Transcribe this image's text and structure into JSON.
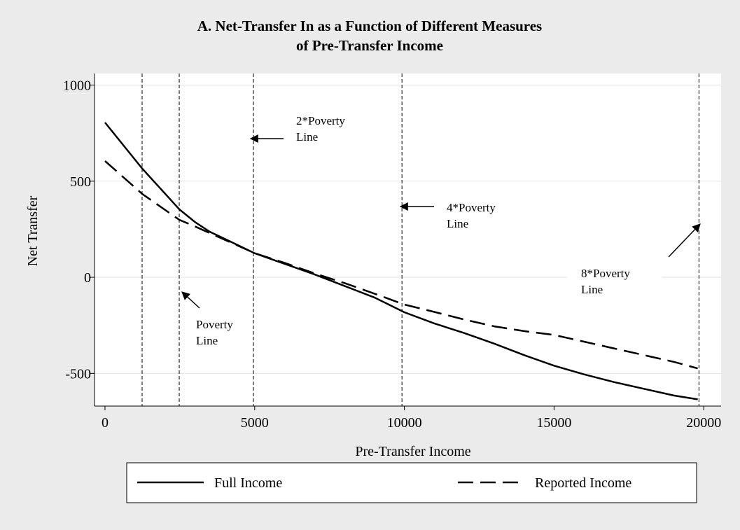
{
  "chart_data": {
    "type": "line",
    "title": [
      "A.   Net-Transfer In as a Function of Different Measures",
      "of Pre-Transfer Income"
    ],
    "x_label": "Pre-Transfer Income",
    "y_label": "Net Transfer",
    "x": [
      0,
      1240,
      2480,
      3000,
      3500,
      4000,
      5000,
      6000,
      7000,
      8000,
      9000,
      10000,
      11000,
      12000,
      13000,
      14000,
      15000,
      16000,
      17000,
      18000,
      19000,
      19800
    ],
    "series": [
      {
        "name": "Full Income",
        "color": "#000000",
        "dash": "solid",
        "values": [
          805,
          566,
          354,
          288,
          237,
          200,
          125,
          70,
          15,
          -45,
          -105,
          -182,
          -240,
          -290,
          -345,
          -405,
          -460,
          -505,
          -545,
          -580,
          -615,
          -635
        ]
      },
      {
        "name": "Reported Income",
        "color": "#000000",
        "dash": "dashed",
        "values": [
          605,
          434,
          299,
          265,
          230,
          195,
          125,
          75,
          20,
          -30,
          -85,
          -142,
          -180,
          -220,
          -255,
          -280,
          -300,
          -335,
          -370,
          -405,
          -440,
          -474
        ]
      }
    ],
    "vlines": [
      1240,
      2480,
      4960,
      9920,
      19840
    ],
    "annotations": [
      {
        "text": [
          "2*Poverty",
          "Line"
        ]
      },
      {
        "text": [
          "4*Poverty",
          "Line"
        ]
      },
      {
        "text": [
          "8*Poverty",
          "Line"
        ]
      },
      {
        "text": [
          "Poverty",
          "Line"
        ]
      }
    ],
    "xlim": [
      -350,
      20580
    ],
    "ylim": [
      -670,
      1060
    ],
    "xticks": [
      0,
      5000,
      10000,
      15000,
      20000
    ],
    "yticks": [
      -500,
      0,
      500,
      1000
    ],
    "grid": true,
    "legend": "bottom"
  }
}
